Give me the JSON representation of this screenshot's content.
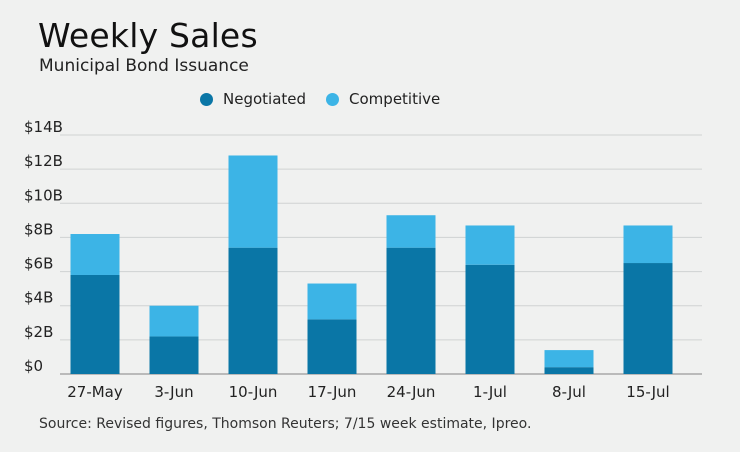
{
  "header": {
    "title": "Weekly Sales",
    "subtitle": "Municipal Bond Issuance"
  },
  "legend": {
    "items": [
      {
        "label": "Negotiated",
        "color": "#0a76a6"
      },
      {
        "label": "Competitive",
        "color": "#3cb4e6"
      }
    ]
  },
  "footer": {
    "source": "Source: Revised figures, Thomson Reuters; 7/15 week estimate, Ipreo."
  },
  "chart_data": {
    "type": "bar",
    "stacked": true,
    "title": "Weekly Sales",
    "subtitle": "Municipal Bond Issuance",
    "categories": [
      "27-May",
      "3-Jun",
      "10-Jun",
      "17-Jun",
      "24-Jun",
      "1-Jul",
      "8-Jul",
      "15-Jul"
    ],
    "series": [
      {
        "name": "Negotiated",
        "color": "#0a76a6",
        "values": [
          5.8,
          2.2,
          7.4,
          3.2,
          7.4,
          6.4,
          0.4,
          6.5
        ]
      },
      {
        "name": "Competitive",
        "color": "#3cb4e6",
        "values": [
          2.4,
          1.8,
          5.4,
          2.1,
          1.9,
          2.3,
          1.0,
          2.2
        ]
      }
    ],
    "ylim": [
      0,
      14
    ],
    "yticks": [
      0,
      2,
      4,
      6,
      8,
      10,
      12,
      14
    ],
    "ytick_labels": [
      "$0",
      "$2B",
      "$4B",
      "$6B",
      "$8B",
      "$10B",
      "$12B",
      "$14B"
    ],
    "grid": true,
    "legend_position": "top-center"
  }
}
